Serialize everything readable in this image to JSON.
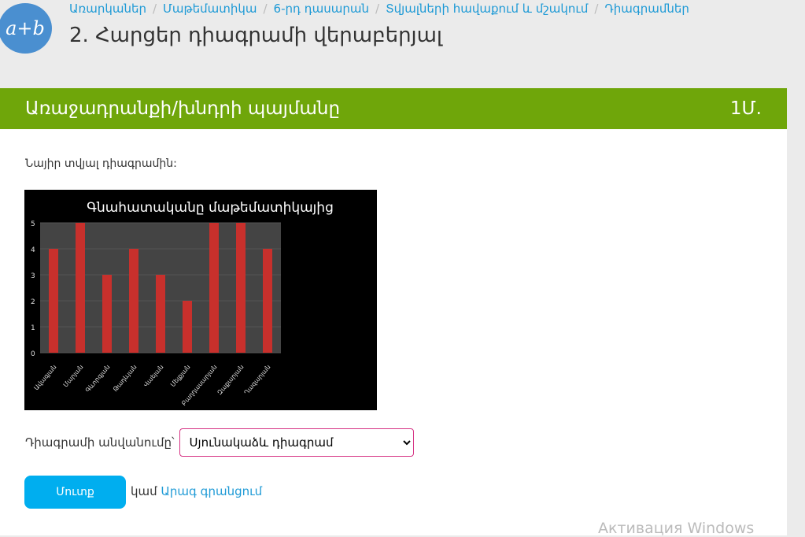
{
  "logo": "a+b",
  "breadcrumb": [
    "Առարկաներ",
    "Մաթեմատիկա",
    "6-րդ դասարան",
    "Տվյալների հավաքում և մշակում",
    "Դիագրամներ"
  ],
  "title": "2. Հարցեր դիագրամի վերաբերյալ",
  "panel": {
    "heading": "Առաջադրանքի/խնդրի պայմանը",
    "points": "1Մ."
  },
  "question": "Նայիր տվյալ դիագրամին:",
  "chart_data": {
    "type": "bar",
    "title": "Գնահատականը մաթեմատիկայից",
    "categories": [
      "Ավագյան",
      "Մարյան",
      "Գևորգյան",
      "Թադևյան",
      "Վաեյան",
      "Մելքյան",
      "Բաղդասարյան",
      "Զաքարյան",
      "Ղազարյան"
    ],
    "values": [
      4,
      5,
      3,
      4,
      3,
      2,
      5,
      5,
      4
    ],
    "ylim": [
      0,
      5
    ],
    "yticks": [
      0,
      1,
      2,
      3,
      4,
      5
    ],
    "bar_color": "#c8302c",
    "background": "#000000"
  },
  "answer": {
    "label": "Դիագրամի անվանումը՝",
    "selected": "Սյունակաձև դիագրամ"
  },
  "submit": "Մուտք",
  "or": "կամ",
  "skip": "Արագ գրանցում",
  "watermark": "Активация Windows"
}
